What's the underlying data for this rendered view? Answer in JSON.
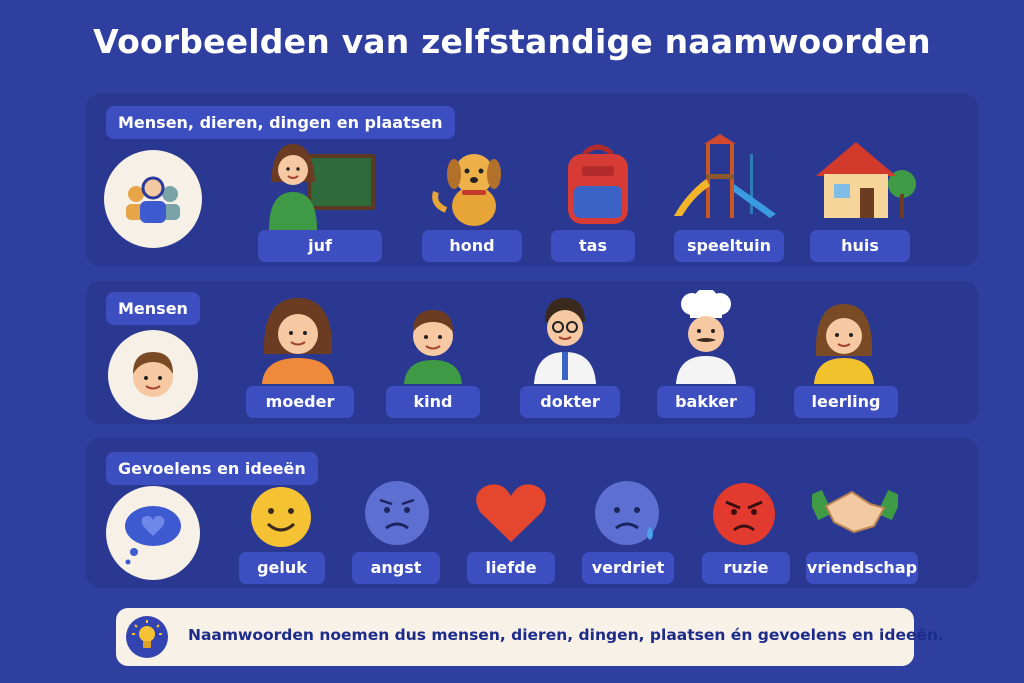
{
  "title": "Voorbeelden van zelfstandige naamwoorden",
  "sections": [
    {
      "tag": "Mensen, dieren, dingen en plaatsen",
      "icon": "people-group-icon",
      "items": [
        {
          "label": "juf",
          "icon": "teacher-icon"
        },
        {
          "label": "hond",
          "icon": "dog-icon"
        },
        {
          "label": "tas",
          "icon": "backpack-icon"
        },
        {
          "label": "speeltuin",
          "icon": "playground-icon"
        },
        {
          "label": "huis",
          "icon": "house-icon"
        }
      ]
    },
    {
      "tag": "Mensen",
      "icon": "boy-face-icon",
      "items": [
        {
          "label": "moeder",
          "icon": "mother-icon"
        },
        {
          "label": "kind",
          "icon": "child-icon"
        },
        {
          "label": "dokter",
          "icon": "doctor-icon"
        },
        {
          "label": "bakker",
          "icon": "baker-icon"
        },
        {
          "label": "leerling",
          "icon": "student-icon"
        }
      ]
    },
    {
      "tag": "Gevoelens en ideeën",
      "icon": "thought-heart-icon",
      "items": [
        {
          "label": "geluk",
          "icon": "happy-face-icon"
        },
        {
          "label": "angst",
          "icon": "worried-face-icon"
        },
        {
          "label": "liefde",
          "icon": "heart-icon"
        },
        {
          "label": "verdriet",
          "icon": "sad-face-icon"
        },
        {
          "label": "ruzie",
          "icon": "angry-face-icon"
        },
        {
          "label": "vriendschap",
          "icon": "handshake-icon"
        }
      ]
    }
  ],
  "footer": {
    "icon": "lightbulb-icon",
    "text": "Naamwoorden noemen dus mensen, dieren, dingen, plaatsen én gevoelens en ideeën."
  }
}
